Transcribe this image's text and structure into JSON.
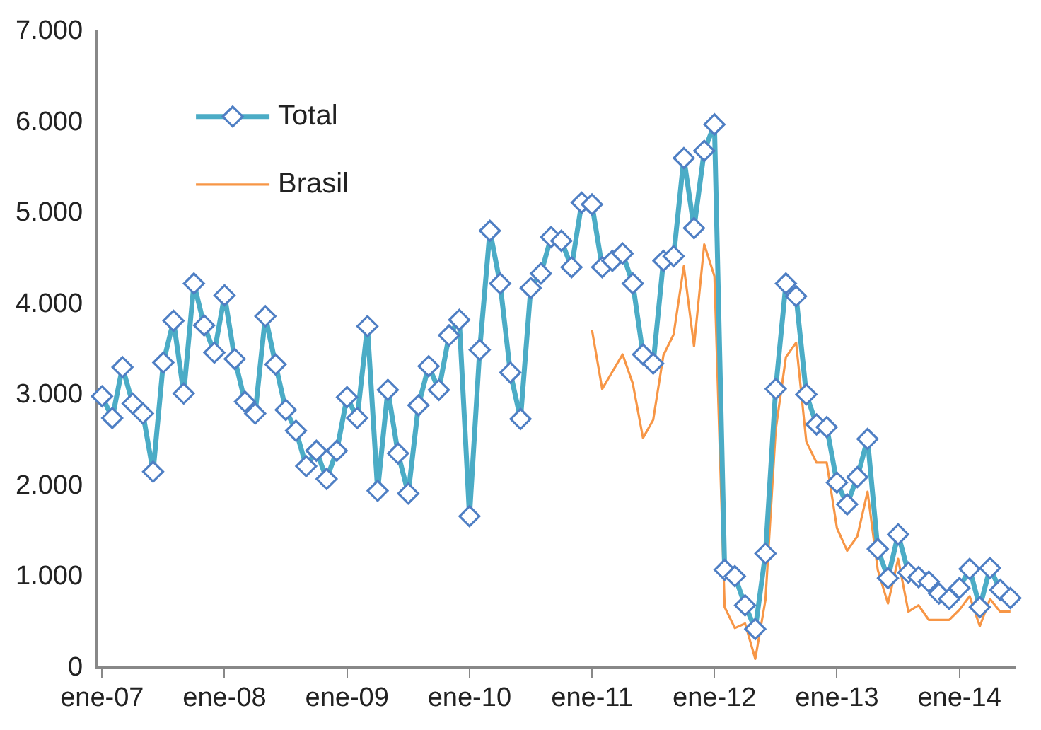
{
  "chart_data": {
    "type": "line",
    "categories": [
      "ene-07",
      null,
      null,
      null,
      null,
      null,
      null,
      null,
      null,
      null,
      null,
      null,
      "ene-08",
      null,
      null,
      null,
      null,
      null,
      null,
      null,
      null,
      null,
      null,
      null,
      "ene-09",
      null,
      null,
      null,
      null,
      null,
      null,
      null,
      null,
      null,
      null,
      null,
      "ene-10",
      null,
      null,
      null,
      null,
      null,
      null,
      null,
      null,
      null,
      null,
      null,
      "ene-11",
      null,
      null,
      null,
      null,
      null,
      null,
      null,
      null,
      null,
      null,
      null,
      "ene-12",
      null,
      null,
      null,
      null,
      null,
      null,
      null,
      null,
      null,
      null,
      null,
      "ene-13",
      null,
      null,
      null,
      null,
      null,
      null,
      null,
      null,
      null,
      null,
      null,
      "ene-14",
      null,
      null,
      null,
      null,
      null
    ],
    "series": [
      {
        "name": "Total",
        "color": "#4bacc6",
        "marker": "diamond",
        "values": [
          2990,
          2750,
          3310,
          2910,
          2800,
          2160,
          3360,
          3820,
          3020,
          4230,
          3770,
          3470,
          4100,
          3400,
          2930,
          2800,
          3870,
          3340,
          2840,
          2610,
          2220,
          2390,
          2080,
          2390,
          2980,
          2750,
          3760,
          1950,
          3060,
          2360,
          1920,
          2890,
          3320,
          3060,
          3660,
          3830,
          1670,
          3500,
          4810,
          4230,
          3250,
          2740,
          4180,
          4340,
          4740,
          4700,
          4410,
          5120,
          5100,
          4410,
          4480,
          4560,
          4230,
          3450,
          3350,
          4480,
          4530,
          5610,
          4840,
          5690,
          5980,
          1080,
          1010,
          690,
          430,
          1260,
          3070,
          4230,
          4090,
          3010,
          2680,
          2650,
          2040,
          1800,
          2100,
          2520,
          1310,
          990,
          1470,
          1050,
          1000,
          950,
          820,
          760,
          880,
          1090,
          670,
          1100,
          860,
          770
        ]
      },
      {
        "name": "Brasil",
        "color": "#f79646",
        "marker": "none",
        "values": [
          null,
          null,
          null,
          null,
          null,
          null,
          null,
          null,
          null,
          null,
          null,
          null,
          null,
          null,
          null,
          null,
          null,
          null,
          null,
          null,
          null,
          null,
          null,
          null,
          null,
          null,
          null,
          null,
          null,
          null,
          null,
          null,
          null,
          null,
          null,
          null,
          null,
          null,
          null,
          null,
          null,
          null,
          null,
          null,
          null,
          null,
          null,
          null,
          3720,
          3070,
          3260,
          3450,
          3130,
          2530,
          2730,
          3440,
          3670,
          4420,
          3540,
          4660,
          4310,
          670,
          440,
          490,
          100,
          750,
          2620,
          3420,
          3580,
          2490,
          2260,
          2260,
          1540,
          1290,
          1450,
          1940,
          1080,
          710,
          1200,
          620,
          690,
          530,
          530,
          530,
          640,
          790,
          460,
          760,
          620,
          620
        ]
      }
    ],
    "ylim": [
      0,
      7000
    ],
    "yticks": [
      {
        "value": 0,
        "label": "0"
      },
      {
        "value": 1000,
        "label": "1.000"
      },
      {
        "value": 2000,
        "label": "2.000"
      },
      {
        "value": 3000,
        "label": "3.000"
      },
      {
        "value": 4000,
        "label": "4.000"
      },
      {
        "value": 5000,
        "label": "5.000"
      },
      {
        "value": 6000,
        "label": "6.000"
      },
      {
        "value": 7000,
        "label": "7.000"
      }
    ],
    "grid": false,
    "legend": "top left"
  }
}
